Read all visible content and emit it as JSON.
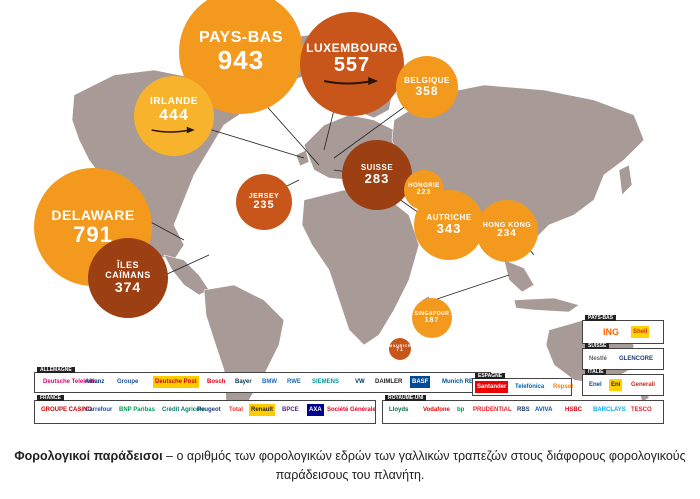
{
  "bubbles": [
    {
      "key": "pays_bas",
      "name": "PAYS-BAS",
      "value": "943",
      "color": "#f39a1e"
    },
    {
      "key": "luxembourg",
      "name": "LUXEMBOURG",
      "value": "557",
      "color": "#c8561b"
    },
    {
      "key": "belgique",
      "name": "BELGIQUE",
      "value": "358",
      "color": "#f39a1e"
    },
    {
      "key": "irlande",
      "name": "IRLANDE",
      "value": "444",
      "color": "#f7b32b"
    },
    {
      "key": "delaware",
      "name": "DELAWARE",
      "value": "791",
      "color": "#f39a1e"
    },
    {
      "key": "iles_caimans",
      "name": "ÎLES\nCAÏMANS",
      "value": "374",
      "color": "#9c3f12"
    },
    {
      "key": "suisse",
      "name": "SUISSE",
      "value": "283",
      "color": "#9c3f12"
    },
    {
      "key": "jersey",
      "name": "JERSEY",
      "value": "235",
      "color": "#c8561b"
    },
    {
      "key": "hongrie",
      "name": "HONGRIE",
      "value": "223",
      "color": "#f39a1e"
    },
    {
      "key": "autriche",
      "name": "AUTRICHE",
      "value": "343",
      "color": "#f39a1e"
    },
    {
      "key": "hong_kong",
      "name": "HONG KONG",
      "value": "234",
      "color": "#f39a1e"
    },
    {
      "key": "singapour",
      "name": "SINGAPOUR",
      "value": "187",
      "color": "#f39a1e"
    },
    {
      "key": "maurice",
      "name": "MAURICE",
      "value": "71",
      "color": "#c8561b"
    }
  ],
  "boxes": {
    "allemagne": {
      "tag": "ALLEMAGNE",
      "logos": [
        "Deutsche Telekom",
        "Allianz",
        "Groupe",
        "Deutsche Post",
        "Bosch",
        "Bayer",
        "BMW",
        "RWE",
        "SIEMENS",
        "VW",
        "DAIMLER",
        "BASF",
        "Munich RE"
      ]
    },
    "france": {
      "tag": "FRANCE",
      "logos": [
        "GROUPE CASINO",
        "Carrefour",
        "BNP Paribas",
        "Crédit Agricole",
        "Peugeot",
        "Total",
        "Renault",
        "BPCE",
        "AXA",
        "Société Générale",
        "Crédit Agricole"
      ]
    },
    "espagne": {
      "tag": "ESPAGNE",
      "logos": [
        "Santander",
        "Telefónica",
        "Repsol"
      ]
    },
    "royaume_uni": {
      "tag": "ROYAUME-UNI",
      "logos": [
        "Lloyds",
        "Vodafone",
        "bp",
        "PRUDENTIAL",
        "RBS",
        "AVIVA",
        "HSBC",
        "BARCLAYS",
        "TESCO"
      ]
    },
    "pays_bas": {
      "tag": "PAYS-BAS",
      "logos": [
        "ING",
        "Shell"
      ]
    },
    "suisse": {
      "tag": "SUISSE",
      "logos": [
        "Nestlé",
        "GLENCORE"
      ]
    },
    "italie": {
      "tag": "ITALIE",
      "logos": [
        "Enel",
        "Eni",
        "Generali"
      ]
    }
  },
  "caption": {
    "title": "Φορολογικοί παράδεισοι",
    "text": " – ο αριθμός των φορολογικών εδρών των γαλλικών τραπεζών στους διάφορους φορολογικούς παράδεισους του πλανήτη."
  }
}
